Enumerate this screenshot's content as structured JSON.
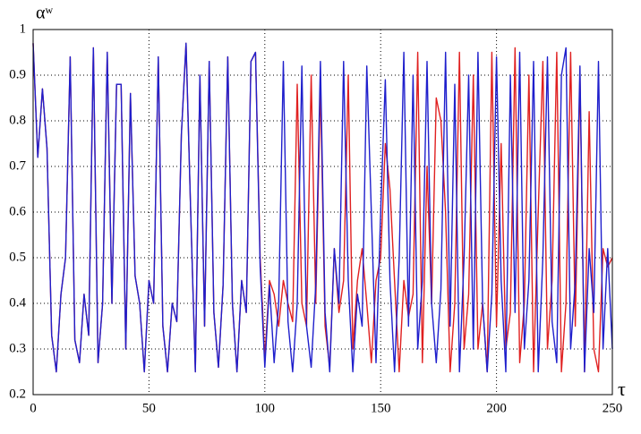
{
  "chart_data": {
    "type": "line",
    "x_label": "τ",
    "y_label": "αʷ",
    "x": [
      0,
      2,
      4,
      6,
      8,
      10,
      12,
      14,
      16,
      18,
      20,
      22,
      24,
      26,
      28,
      30,
      32,
      34,
      36,
      38,
      40,
      42,
      44,
      46,
      48,
      50,
      52,
      54,
      56,
      58,
      60,
      62,
      64,
      66,
      68,
      70,
      72,
      74,
      76,
      78,
      80,
      82,
      84,
      86,
      88,
      90,
      92,
      94,
      96,
      98,
      100,
      102,
      104,
      106,
      108,
      110,
      112,
      114,
      116,
      118,
      120,
      122,
      124,
      126,
      128,
      130,
      132,
      134,
      136,
      138,
      140,
      142,
      144,
      146,
      148,
      150,
      152,
      154,
      156,
      158,
      160,
      162,
      164,
      166,
      168,
      170,
      172,
      174,
      176,
      178,
      180,
      182,
      184,
      186,
      188,
      190,
      192,
      194,
      196,
      198,
      200,
      202,
      204,
      206,
      208,
      210,
      212,
      214,
      216,
      218,
      220,
      222,
      224,
      226,
      228,
      230,
      232,
      234,
      236,
      238,
      240,
      242,
      244,
      246,
      248,
      250
    ],
    "series": [
      {
        "color": "#e02020",
        "values": [
          0.97,
          0.72,
          0.87,
          0.74,
          0.33,
          0.25,
          0.42,
          0.5,
          0.94,
          0.32,
          0.27,
          0.42,
          0.33,
          0.96,
          0.27,
          0.4,
          0.95,
          0.4,
          0.88,
          0.88,
          0.3,
          0.86,
          0.46,
          0.4,
          0.25,
          0.45,
          0.4,
          0.94,
          0.35,
          0.25,
          0.4,
          0.36,
          0.77,
          0.97,
          0.6,
          0.25,
          0.9,
          0.35,
          0.93,
          0.38,
          0.26,
          0.44,
          0.94,
          0.4,
          0.25,
          0.45,
          0.38,
          0.93,
          0.95,
          0.5,
          0.28,
          0.45,
          0.42,
          0.35,
          0.45,
          0.4,
          0.36,
          0.88,
          0.4,
          0.35,
          0.9,
          0.4,
          0.88,
          0.35,
          0.26,
          0.52,
          0.38,
          0.45,
          0.9,
          0.3,
          0.45,
          0.52,
          0.4,
          0.27,
          0.45,
          0.5,
          0.75,
          0.65,
          0.45,
          0.25,
          0.45,
          0.37,
          0.42,
          0.95,
          0.27,
          0.7,
          0.4,
          0.85,
          0.8,
          0.6,
          0.25,
          0.4,
          0.95,
          0.3,
          0.42,
          0.9,
          0.3,
          0.4,
          0.25,
          0.95,
          0.35,
          0.75,
          0.3,
          0.38,
          0.96,
          0.27,
          0.4,
          0.9,
          0.25,
          0.6,
          0.93,
          0.3,
          0.45,
          0.95,
          0.25,
          0.4,
          0.95,
          0.35,
          0.9,
          0.25,
          0.82,
          0.3,
          0.25,
          0.52,
          0.48,
          0.5
        ]
      },
      {
        "color": "#1f1fcc",
        "values": [
          0.97,
          0.72,
          0.87,
          0.74,
          0.33,
          0.25,
          0.42,
          0.5,
          0.94,
          0.32,
          0.27,
          0.42,
          0.33,
          0.96,
          0.27,
          0.4,
          0.95,
          0.4,
          0.88,
          0.88,
          0.3,
          0.86,
          0.46,
          0.4,
          0.25,
          0.45,
          0.4,
          0.94,
          0.35,
          0.25,
          0.4,
          0.36,
          0.77,
          0.97,
          0.6,
          0.25,
          0.9,
          0.35,
          0.93,
          0.38,
          0.26,
          0.44,
          0.94,
          0.4,
          0.25,
          0.45,
          0.38,
          0.93,
          0.95,
          0.48,
          0.26,
          0.44,
          0.27,
          0.4,
          0.93,
          0.36,
          0.25,
          0.4,
          0.92,
          0.35,
          0.26,
          0.44,
          0.93,
          0.38,
          0.25,
          0.52,
          0.4,
          0.93,
          0.45,
          0.25,
          0.42,
          0.35,
          0.92,
          0.6,
          0.27,
          0.6,
          0.89,
          0.45,
          0.25,
          0.5,
          0.95,
          0.35,
          0.9,
          0.3,
          0.45,
          0.93,
          0.4,
          0.27,
          0.43,
          0.95,
          0.35,
          0.88,
          0.25,
          0.5,
          0.9,
          0.3,
          0.95,
          0.4,
          0.25,
          0.42,
          0.94,
          0.45,
          0.25,
          0.9,
          0.38,
          0.95,
          0.3,
          0.45,
          0.93,
          0.25,
          0.5,
          0.94,
          0.36,
          0.27,
          0.9,
          0.96,
          0.3,
          0.45,
          0.92,
          0.25,
          0.52,
          0.38,
          0.93,
          0.3,
          0.52,
          0.3
        ]
      }
    ],
    "xlim": [
      0,
      250
    ],
    "xticks": [
      0,
      50,
      100,
      150,
      200,
      250
    ],
    "ylim": [
      0.2,
      1
    ],
    "yticks": [
      0.2,
      0.3,
      0.4,
      0.5,
      0.6,
      0.7,
      0.8,
      0.9,
      1
    ],
    "grid": true
  }
}
